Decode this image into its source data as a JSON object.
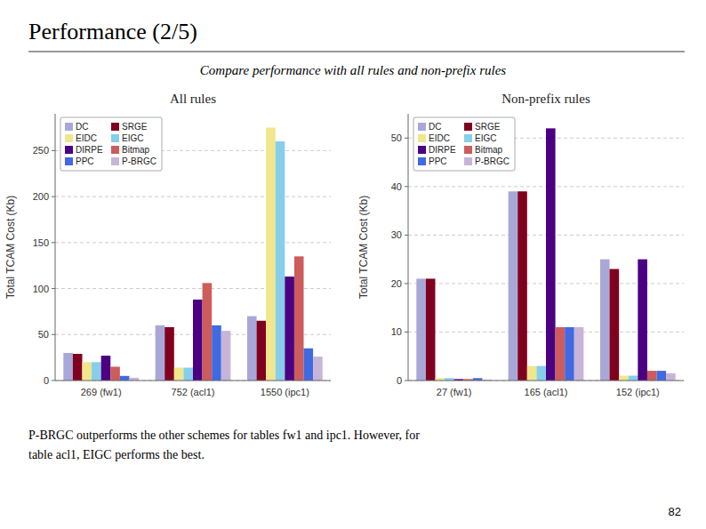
{
  "title": "Performance (2/5)",
  "subtitle": "Compare performance with all rules and non-prefix rules",
  "annotations": [
    "P-BRGC outperforms the other schemes for tables fw1 and ipc1. However, for",
    "table acl1, EIGC performs the best.",
    "82"
  ],
  "chart_data": [
    {
      "type": "bar",
      "title": "All rules",
      "categories": [
        "269 (fw1)",
        "752 (acl1)",
        "1550 (ipc1)"
      ],
      "y_label": "Total TCAM Cost (Kb)",
      "ylim": [
        0,
        290
      ],
      "yticks": [
        0,
        50,
        100,
        150,
        200,
        250
      ],
      "grid": true,
      "legend": "upper left",
      "series": [
        {
          "name": "DC",
          "color": "#a8a8d8",
          "values": [
            30,
            60,
            70
          ]
        },
        {
          "name": "SRGE",
          "color": "#800020",
          "values": [
            29,
            58,
            65
          ]
        },
        {
          "name": "EIDC",
          "color": "#f0e68c",
          "values": [
            20,
            14,
            275
          ]
        },
        {
          "name": "EIGC",
          "color": "#87ceeb",
          "values": [
            20,
            14,
            260
          ]
        },
        {
          "name": "DIRPE",
          "color": "#4b0082",
          "values": [
            27,
            88,
            113
          ]
        },
        {
          "name": "Bitmap",
          "color": "#cd5c5c",
          "values": [
            15,
            106,
            135
          ]
        },
        {
          "name": "PPC",
          "color": "#4169e1",
          "values": [
            5,
            60,
            35
          ]
        },
        {
          "name": "P-BRGC",
          "color": "#c8b4d8",
          "values": [
            3,
            54,
            26
          ]
        }
      ]
    },
    {
      "type": "bar",
      "title": "Non-prefix rules",
      "categories": [
        "27 (fw1)",
        "165 (acl1)",
        "152 (ipc1)"
      ],
      "y_label": "Total TCAM Cost (Kb)",
      "ylim": [
        0,
        55
      ],
      "yticks": [
        0,
        10,
        20,
        30,
        40,
        50
      ],
      "grid": true,
      "legend": "upper left",
      "series": [
        {
          "name": "DC",
          "color": "#a8a8d8",
          "values": [
            21,
            39,
            25
          ]
        },
        {
          "name": "SRGE",
          "color": "#800020",
          "values": [
            21,
            39,
            23
          ]
        },
        {
          "name": "EIDC",
          "color": "#f0e68c",
          "values": [
            0.5,
            3,
            1
          ]
        },
        {
          "name": "EIGC",
          "color": "#87ceeb",
          "values": [
            0.5,
            3,
            1
          ]
        },
        {
          "name": "DIRPE",
          "color": "#4b0082",
          "values": [
            0.3,
            52,
            25
          ]
        },
        {
          "name": "Bitmap",
          "color": "#cd5c5c",
          "values": [
            0.3,
            11,
            2
          ]
        },
        {
          "name": "PPC",
          "color": "#4169e1",
          "values": [
            0.5,
            11,
            2
          ]
        },
        {
          "name": "P-BRGC",
          "color": "#c8b4d8",
          "values": [
            0.2,
            11,
            1.5
          ]
        }
      ]
    }
  ]
}
